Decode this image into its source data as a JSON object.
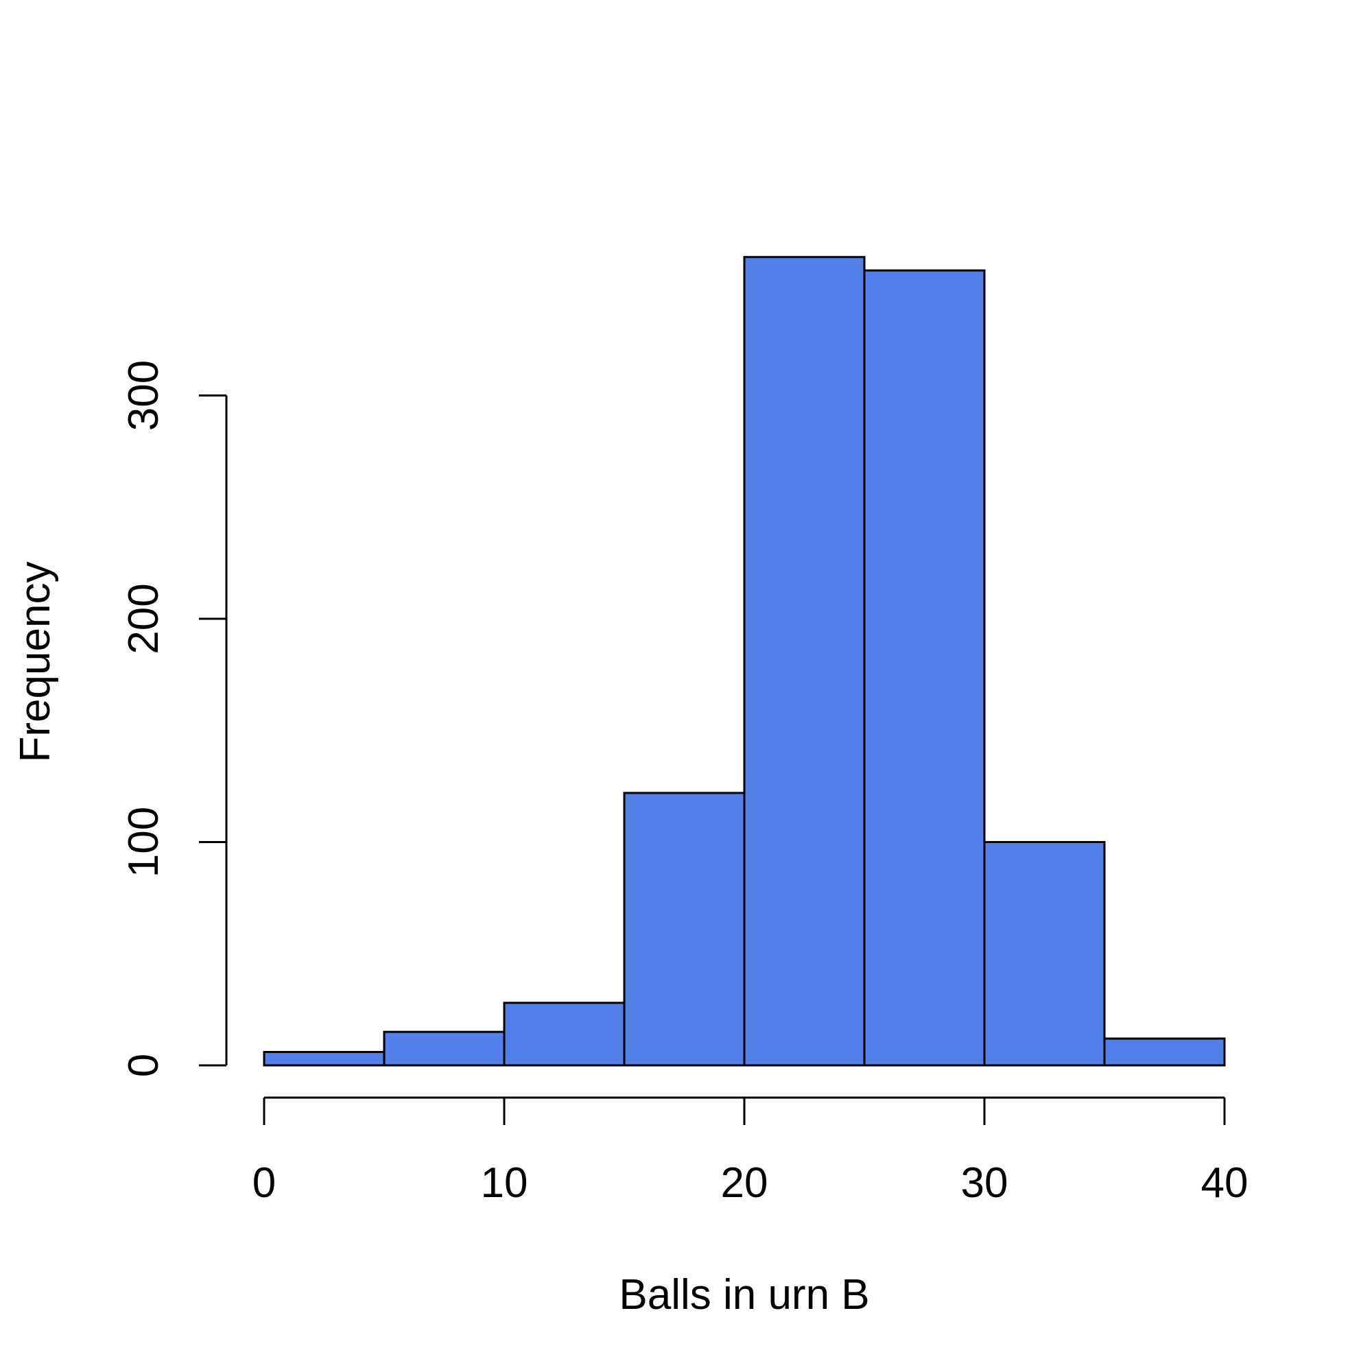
{
  "chart_data": {
    "type": "histogram",
    "title": "",
    "xlabel": "Balls in urn B",
    "ylabel": "Frequency",
    "bins": [
      {
        "from": 0,
        "to": 5,
        "count": 6
      },
      {
        "from": 5,
        "to": 10,
        "count": 15
      },
      {
        "from": 10,
        "to": 15,
        "count": 28
      },
      {
        "from": 15,
        "to": 20,
        "count": 122
      },
      {
        "from": 20,
        "to": 25,
        "count": 362
      },
      {
        "from": 25,
        "to": 30,
        "count": 356
      },
      {
        "from": 30,
        "to": 35,
        "count": 100
      },
      {
        "from": 35,
        "to": 40,
        "count": 12
      }
    ],
    "xlim": [
      0,
      40
    ],
    "ylim": [
      0,
      362
    ],
    "xticks": [
      0,
      10,
      20,
      30,
      40
    ],
    "yticks": [
      0,
      100,
      200,
      300
    ],
    "bar_color": "#527fe8",
    "grid": false,
    "legend": "none"
  }
}
